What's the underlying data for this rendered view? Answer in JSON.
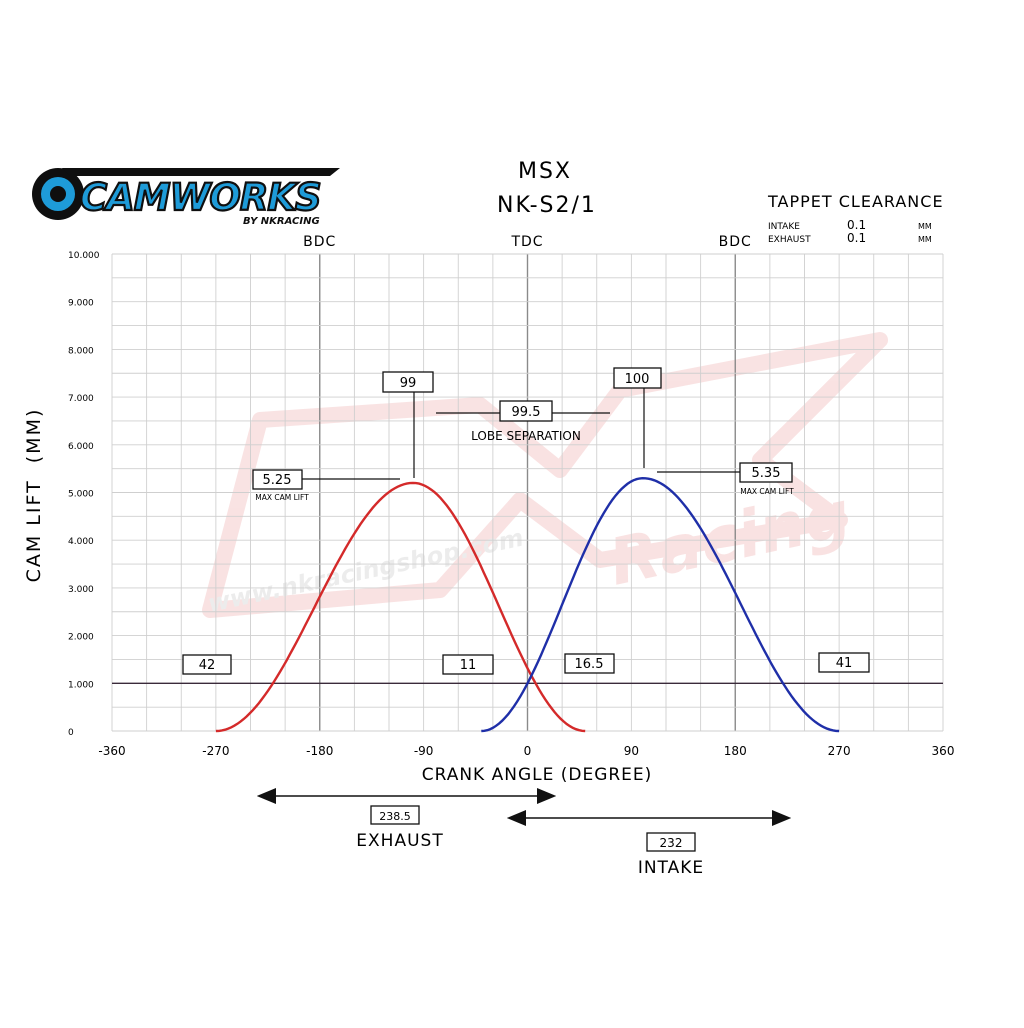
{
  "logo": {
    "brand": "CAMWORKS",
    "tagline": "BY NKRACING"
  },
  "watermark": {
    "url": "www.nkracingshop.com",
    "script": "Racing"
  },
  "title_line1": "MSX",
  "title_line2": "NK-S2/1",
  "tappet": {
    "heading": "TAPPET CLEARANCE",
    "rows": [
      {
        "label": "INTAKE",
        "value": "0.1",
        "unit": "MM"
      },
      {
        "label": "EXHAUST",
        "value": "0.1",
        "unit": "MM"
      }
    ]
  },
  "colors": {
    "exhaust": "#d42a2a",
    "intake": "#1f2fa8",
    "grid": "#cfcfcf",
    "major_grid": "#8a8a8a"
  },
  "chart_data": {
    "type": "line",
    "xlabel": "CRANK ANGLE (DEGREE)",
    "ylabel": "CAM LIFT  (MM)",
    "xlim": [
      -360,
      360
    ],
    "ylim": [
      0,
      10
    ],
    "x_ticks": [
      "-360",
      "-270",
      "-180",
      "-90",
      "0",
      "90",
      "180",
      "270",
      "360"
    ],
    "y_ticks": [
      "0",
      "1.000",
      "2.000",
      "3.000",
      "4.000",
      "5.000",
      "6.000",
      "7.000",
      "8.000",
      "9.000",
      "10.000"
    ],
    "grid": true,
    "top_markers": [
      {
        "label": "BDC",
        "x": -180
      },
      {
        "label": "TDC",
        "x": 0
      },
      {
        "label": "BDC",
        "x": 180
      }
    ],
    "reference_line_y": 1.0,
    "series": [
      {
        "key": "exhaust",
        "start": -270,
        "end": 50,
        "peak_x": -99,
        "peak_y": 5.2
      },
      {
        "key": "intake",
        "start": -40,
        "end": 270,
        "peak_x": 100,
        "peak_y": 5.3
      }
    ],
    "annotations": {
      "exhaust_center": "99",
      "intake_center": "100",
      "lobe_separation_value": "99.5",
      "lobe_separation_label": "LOBE SEPARATION",
      "exhaust_max_lift": "5.25",
      "intake_max_lift": "5.35",
      "max_lift_label": "MAX CAM LIFT",
      "exhaust_open": "42",
      "exhaust_close": "11",
      "intake_open": "16.5",
      "intake_close": "41"
    },
    "durations": {
      "exhaust_value": "238.5",
      "exhaust_label": "EXHAUST",
      "intake_value": "232",
      "intake_label": "INTAKE"
    }
  }
}
